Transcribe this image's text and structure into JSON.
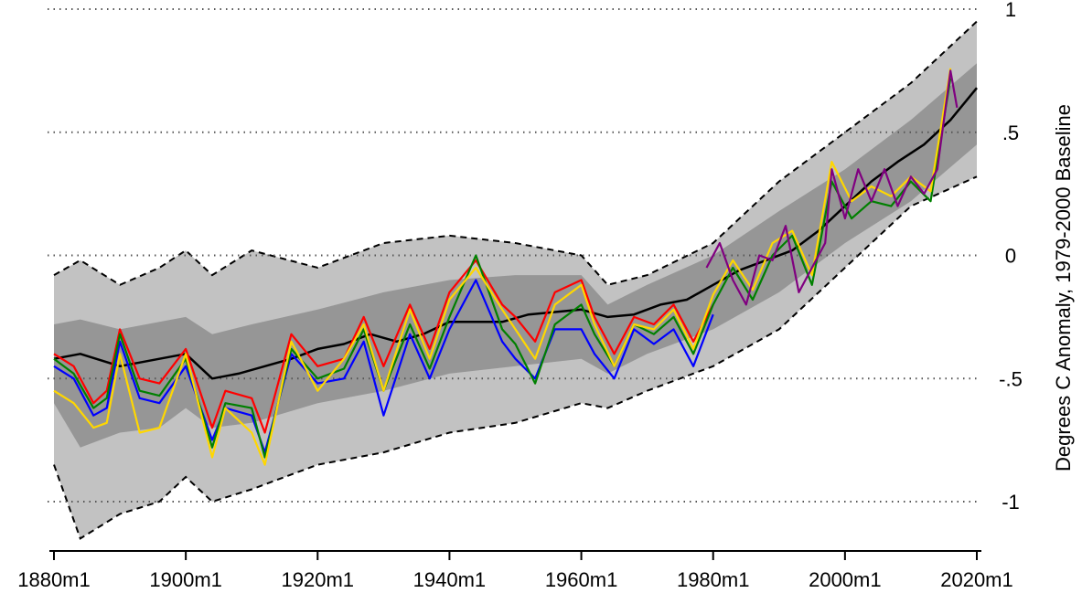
{
  "chart_data": {
    "type": "line",
    "ylabel": "Degrees C Anomaly, 1979-2000 Baseline",
    "xlabel": "",
    "xlim": [
      1880,
      2020
    ],
    "ylim": [
      -1.2,
      1.0
    ],
    "x_ticks": [
      {
        "value": 1880,
        "label": "1880m1"
      },
      {
        "value": 1900,
        "label": "1900m1"
      },
      {
        "value": 1920,
        "label": "1920m1"
      },
      {
        "value": 1940,
        "label": "1940m1"
      },
      {
        "value": 1960,
        "label": "1960m1"
      },
      {
        "value": 1980,
        "label": "1980m1"
      },
      {
        "value": 2000,
        "label": "2000m1"
      },
      {
        "value": 2020,
        "label": "2020m1"
      }
    ],
    "y_ticks": [
      {
        "value": 1,
        "label": "1"
      },
      {
        "value": 0.5,
        "label": ".5"
      },
      {
        "value": 0,
        "label": "0"
      },
      {
        "value": -0.5,
        "label": "-.5"
      },
      {
        "value": -1,
        "label": "-1"
      }
    ],
    "y_axis_side": "right",
    "grid": "horizontal dotted",
    "colors": {
      "outer_band": "#c2c2c2",
      "inner_band": "#969696",
      "envelope": "#000000",
      "mean": "#000000"
    },
    "series": [
      {
        "color": "#000000",
        "style": "solid",
        "x": [
          1880,
          1884,
          1890,
          1896,
          1900,
          1904,
          1908,
          1912,
          1916,
          1920,
          1924,
          1928,
          1932,
          1936,
          1940,
          1944,
          1948,
          1952,
          1956,
          1960,
          1964,
          1968,
          1972,
          1976,
          1980,
          1984,
          1988,
          1992,
          1996,
          2000,
          2004,
          2008,
          2012,
          2016,
          2020
        ],
        "y": [
          -0.42,
          -0.4,
          -0.45,
          -0.42,
          -0.4,
          -0.5,
          -0.48,
          -0.45,
          -0.42,
          -0.38,
          -0.36,
          -0.32,
          -0.35,
          -0.32,
          -0.27,
          -0.27,
          -0.27,
          -0.24,
          -0.23,
          -0.22,
          -0.25,
          -0.24,
          -0.2,
          -0.18,
          -0.12,
          -0.06,
          -0.02,
          0.02,
          0.1,
          0.2,
          0.3,
          0.38,
          0.45,
          0.55,
          0.68
        ]
      },
      {
        "color": "#0000ff",
        "style": "solid",
        "x": [
          1880,
          1883,
          1886,
          1888,
          1890,
          1893,
          1896,
          1900,
          1904,
          1906,
          1910,
          1912,
          1916,
          1920,
          1924,
          1927,
          1930,
          1934,
          1937,
          1940,
          1944,
          1948,
          1950,
          1953,
          1956,
          1960,
          1962,
          1965,
          1968,
          1971,
          1974,
          1977,
          1980
        ],
        "y": [
          -0.45,
          -0.5,
          -0.65,
          -0.62,
          -0.35,
          -0.58,
          -0.6,
          -0.45,
          -0.75,
          -0.62,
          -0.65,
          -0.8,
          -0.4,
          -0.52,
          -0.5,
          -0.35,
          -0.65,
          -0.32,
          -0.5,
          -0.3,
          -0.1,
          -0.35,
          -0.42,
          -0.5,
          -0.3,
          -0.3,
          -0.4,
          -0.5,
          -0.3,
          -0.36,
          -0.3,
          -0.45,
          -0.24
        ]
      },
      {
        "color": "#ff0000",
        "style": "solid",
        "x": [
          1880,
          1883,
          1886,
          1888,
          1890,
          1893,
          1896,
          1900,
          1904,
          1906,
          1910,
          1912,
          1916,
          1920,
          1924,
          1927,
          1930,
          1934,
          1937,
          1940,
          1944,
          1948,
          1950,
          1953,
          1956,
          1960,
          1962,
          1965,
          1968,
          1971,
          1974,
          1977,
          1980
        ],
        "y": [
          -0.4,
          -0.45,
          -0.6,
          -0.55,
          -0.3,
          -0.5,
          -0.52,
          -0.38,
          -0.7,
          -0.55,
          -0.58,
          -0.72,
          -0.32,
          -0.45,
          -0.42,
          -0.25,
          -0.45,
          -0.2,
          -0.38,
          -0.15,
          -0.02,
          -0.2,
          -0.25,
          -0.35,
          -0.15,
          -0.1,
          -0.25,
          -0.4,
          -0.25,
          -0.28,
          -0.2,
          -0.35,
          -0.2
        ]
      },
      {
        "color": "#008000",
        "style": "solid",
        "x": [
          1880,
          1883,
          1886,
          1888,
          1890,
          1893,
          1896,
          1900,
          1904,
          1906,
          1910,
          1912,
          1916,
          1920,
          1924,
          1927,
          1930,
          1934,
          1937,
          1940,
          1944,
          1948,
          1950,
          1953,
          1956,
          1960,
          1962,
          1965,
          1968,
          1971,
          1974,
          1977,
          1980,
          1983,
          1986,
          1989,
          1992,
          1995,
          1998,
          2001,
          2004,
          2007,
          2010,
          2013,
          2016
        ],
        "y": [
          -0.42,
          -0.48,
          -0.62,
          -0.58,
          -0.32,
          -0.55,
          -0.57,
          -0.42,
          -0.78,
          -0.6,
          -0.62,
          -0.82,
          -0.38,
          -0.5,
          -0.46,
          -0.3,
          -0.55,
          -0.28,
          -0.46,
          -0.25,
          0.0,
          -0.3,
          -0.36,
          -0.52,
          -0.28,
          -0.2,
          -0.32,
          -0.45,
          -0.28,
          -0.32,
          -0.25,
          -0.4,
          -0.2,
          -0.05,
          -0.18,
          0.0,
          0.08,
          -0.12,
          0.3,
          0.15,
          0.22,
          0.2,
          0.3,
          0.22,
          0.72
        ]
      },
      {
        "color": "#ffd700",
        "style": "solid",
        "x": [
          1880,
          1883,
          1886,
          1888,
          1890,
          1893,
          1896,
          1900,
          1904,
          1906,
          1910,
          1912,
          1916,
          1920,
          1924,
          1927,
          1930,
          1934,
          1937,
          1940,
          1944,
          1948,
          1950,
          1953,
          1956,
          1960,
          1962,
          1965,
          1968,
          1971,
          1974,
          1977,
          1980,
          1983,
          1986,
          1989,
          1992,
          1995,
          1998,
          2001,
          2004,
          2007,
          2010,
          2013,
          2016
        ],
        "y": [
          -0.55,
          -0.6,
          -0.7,
          -0.68,
          -0.4,
          -0.72,
          -0.7,
          -0.4,
          -0.82,
          -0.62,
          -0.72,
          -0.85,
          -0.35,
          -0.55,
          -0.42,
          -0.28,
          -0.55,
          -0.22,
          -0.42,
          -0.18,
          -0.05,
          -0.22,
          -0.3,
          -0.42,
          -0.2,
          -0.12,
          -0.28,
          -0.45,
          -0.28,
          -0.3,
          -0.22,
          -0.38,
          -0.16,
          -0.02,
          -0.14,
          0.05,
          0.1,
          -0.08,
          0.38,
          0.22,
          0.28,
          0.24,
          0.32,
          0.26,
          0.76
        ]
      },
      {
        "color": "#800080",
        "style": "solid",
        "x": [
          1979,
          1981,
          1983,
          1985,
          1987,
          1989,
          1991,
          1993,
          1995,
          1997,
          1998,
          2000,
          2002,
          2004,
          2006,
          2008,
          2010,
          2012,
          2014,
          2016,
          2017
        ],
        "y": [
          -0.05,
          0.05,
          -0.1,
          -0.2,
          0.0,
          -0.02,
          0.12,
          -0.15,
          -0.05,
          0.05,
          0.35,
          0.15,
          0.35,
          0.22,
          0.35,
          0.2,
          0.32,
          0.25,
          0.35,
          0.75,
          0.6
        ]
      }
    ],
    "bands": [
      {
        "name_hidden": true,
        "kind": "outer",
        "x": [
          1880,
          1884,
          1890,
          1896,
          1900,
          1904,
          1910,
          1920,
          1930,
          1940,
          1950,
          1960,
          1964,
          1970,
          1980,
          1990,
          2000,
          2010,
          2020
        ],
        "upper": [
          -0.08,
          -0.02,
          -0.12,
          -0.05,
          0.02,
          -0.08,
          0.02,
          -0.05,
          0.05,
          0.08,
          0.05,
          0.0,
          -0.12,
          -0.08,
          0.05,
          0.3,
          0.5,
          0.7,
          0.95
        ],
        "lower": [
          -0.85,
          -1.15,
          -1.05,
          -1.0,
          -0.9,
          -1.0,
          -0.95,
          -0.85,
          -0.8,
          -0.72,
          -0.68,
          -0.6,
          -0.62,
          -0.55,
          -0.45,
          -0.3,
          -0.05,
          0.2,
          0.32
        ]
      },
      {
        "name_hidden": true,
        "kind": "inner",
        "x": [
          1880,
          1884,
          1890,
          1896,
          1900,
          1904,
          1910,
          1920,
          1930,
          1940,
          1950,
          1960,
          1964,
          1970,
          1980,
          1990,
          2000,
          2010,
          2020
        ],
        "upper": [
          -0.28,
          -0.26,
          -0.3,
          -0.27,
          -0.25,
          -0.32,
          -0.28,
          -0.22,
          -0.15,
          -0.1,
          -0.08,
          -0.08,
          -0.2,
          -0.12,
          0.0,
          0.18,
          0.35,
          0.55,
          0.78
        ],
        "lower": [
          -0.6,
          -0.78,
          -0.72,
          -0.7,
          -0.62,
          -0.7,
          -0.68,
          -0.6,
          -0.55,
          -0.48,
          -0.45,
          -0.42,
          -0.48,
          -0.4,
          -0.3,
          -0.15,
          0.05,
          0.22,
          0.45
        ]
      }
    ]
  }
}
